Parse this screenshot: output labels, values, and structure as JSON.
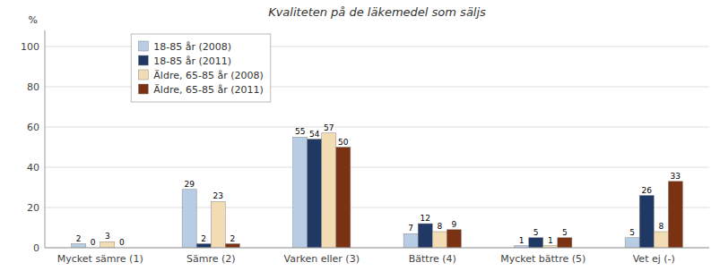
{
  "chart_data": {
    "type": "bar",
    "title": "Kvaliteten på de läkemedel som säljs",
    "categories": [
      "Mycket sämre (1)",
      "Sämre (2)",
      "Varken eller (3)",
      "Bättre (4)",
      "Mycket bättre (5)",
      "Vet ej (-)"
    ],
    "series": [
      {
        "name": "18-85 år (2008)",
        "values": [
          2,
          29,
          55,
          7,
          1,
          5
        ],
        "color": "#b8cce4"
      },
      {
        "name": "18-85 år (2011)",
        "values": [
          0,
          2,
          54,
          12,
          5,
          26
        ],
        "color": "#1f3864"
      },
      {
        "name": "Äldre, 65-85 år (2008)",
        "values": [
          3,
          23,
          57,
          8,
          1,
          8
        ],
        "color": "#f2dcb3"
      },
      {
        "name": "Äldre, 65-85 år (2011)",
        "values": [
          0,
          2,
          50,
          9,
          5,
          33
        ],
        "color": "#7b3213"
      }
    ],
    "y_label": "%",
    "ylim": [
      0,
      108
    ],
    "yticks": [
      0,
      20,
      40,
      60,
      80,
      100
    ],
    "grid": true,
    "legend": "upper left",
    "data_labels": true
  }
}
